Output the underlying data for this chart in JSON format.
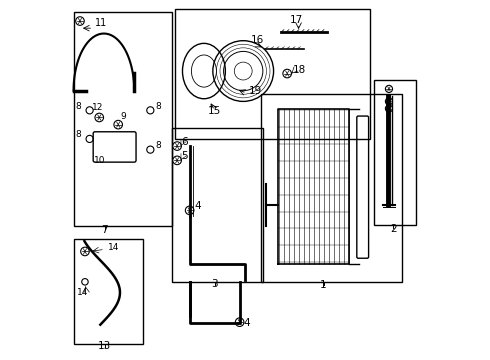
{
  "bg_color": "#ffffff",
  "border_color": "#000000",
  "line_color": "#000000",
  "text_color": "#000000",
  "fig_width": 4.9,
  "fig_height": 3.6,
  "dpi": 100
}
